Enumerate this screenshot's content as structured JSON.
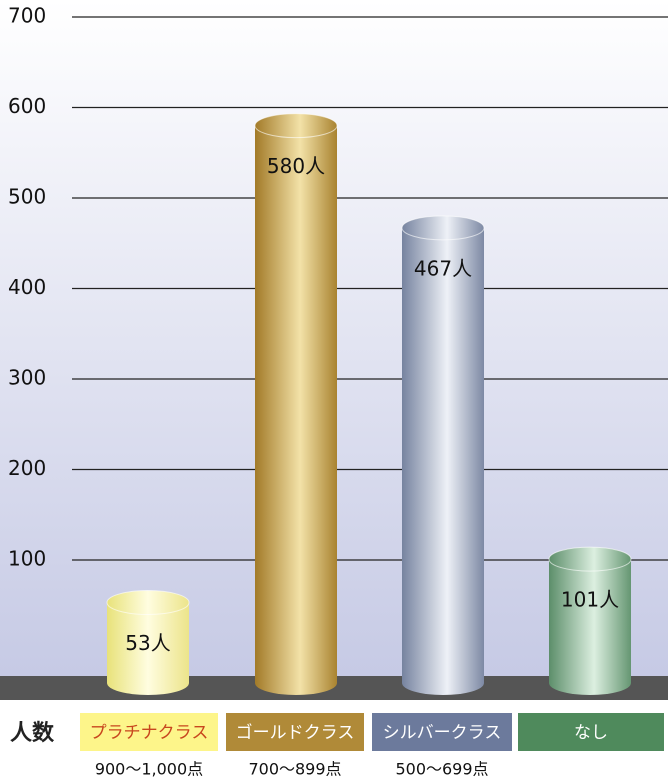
{
  "chart_data": {
    "type": "bar",
    "y_label": "人数",
    "categories": [
      "プラチナクラス",
      "ゴールドクラス",
      "シルバークラス",
      "なし"
    ],
    "ranges": [
      "900〜1,000点",
      "700〜899点",
      "500〜699点",
      null
    ],
    "values": [
      53,
      580,
      467,
      101
    ],
    "value_labels": [
      "53人",
      "580人",
      "467人",
      "101人"
    ],
    "colors": [
      "#fdf58a",
      "#b08a38",
      "#6c7a9c",
      "#4f8a5c"
    ],
    "ylim": [
      0,
      700
    ],
    "yticks": [
      100,
      200,
      300,
      400,
      500,
      600,
      700
    ],
    "grid": true
  }
}
